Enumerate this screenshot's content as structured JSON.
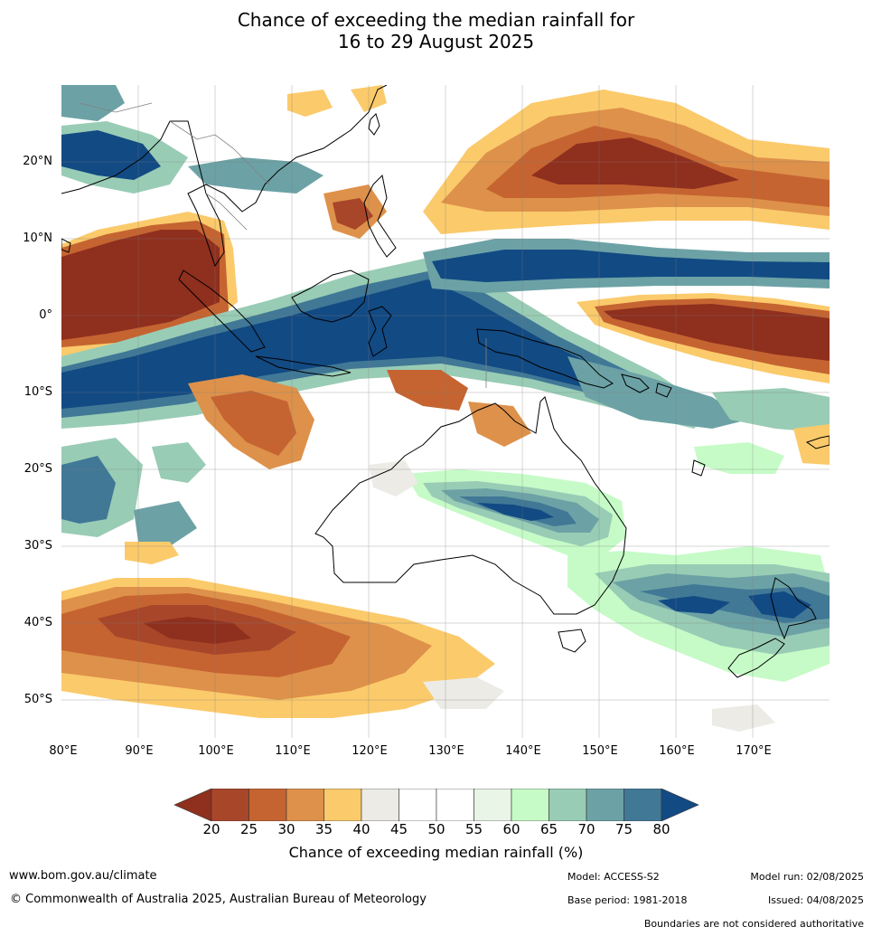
{
  "title": {
    "line1": "Chance of exceeding the median rainfall for",
    "line2": "16 to 29 August 2025"
  },
  "map": {
    "lat_labels": [
      "20°N",
      "10°N",
      "0°",
      "10°S",
      "20°S",
      "30°S",
      "40°S",
      "50°S"
    ],
    "lon_labels": [
      "80°E",
      "90°E",
      "100°E",
      "110°E",
      "120°E",
      "130°E",
      "140°E",
      "150°E",
      "160°E",
      "170°E"
    ],
    "lat_range": [
      -55,
      30
    ],
    "lon_range": [
      80,
      180
    ]
  },
  "colorbar": {
    "ticks": [
      "20",
      "25",
      "30",
      "35",
      "40",
      "45",
      "50",
      "55",
      "60",
      "65",
      "70",
      "75",
      "80"
    ],
    "colors": [
      "#8f2f1e",
      "#a8462a",
      "#c56431",
      "#de914a",
      "#fbca6b",
      "#ecebe6",
      "#ffffff",
      "#ffffff",
      "#e9f5e7",
      "#c6fbc7",
      "#99ccb5",
      "#6ca2a5",
      "#417896",
      "#124a83"
    ],
    "label": "Chance of exceeding median rainfall (%)"
  },
  "footer": {
    "website": "www.bom.gov.au/climate",
    "copyright": "© Commonwealth of Australia 2025, Australian Bureau of Meteorology",
    "model": "Model: ACCESS-S2",
    "model_run": "Model run: 02/08/2025",
    "base_period": "Base period: 1981-2018",
    "issued": "Issued: 04/08/2025",
    "disclaimer": "Boundaries are not considered authoritative"
  }
}
